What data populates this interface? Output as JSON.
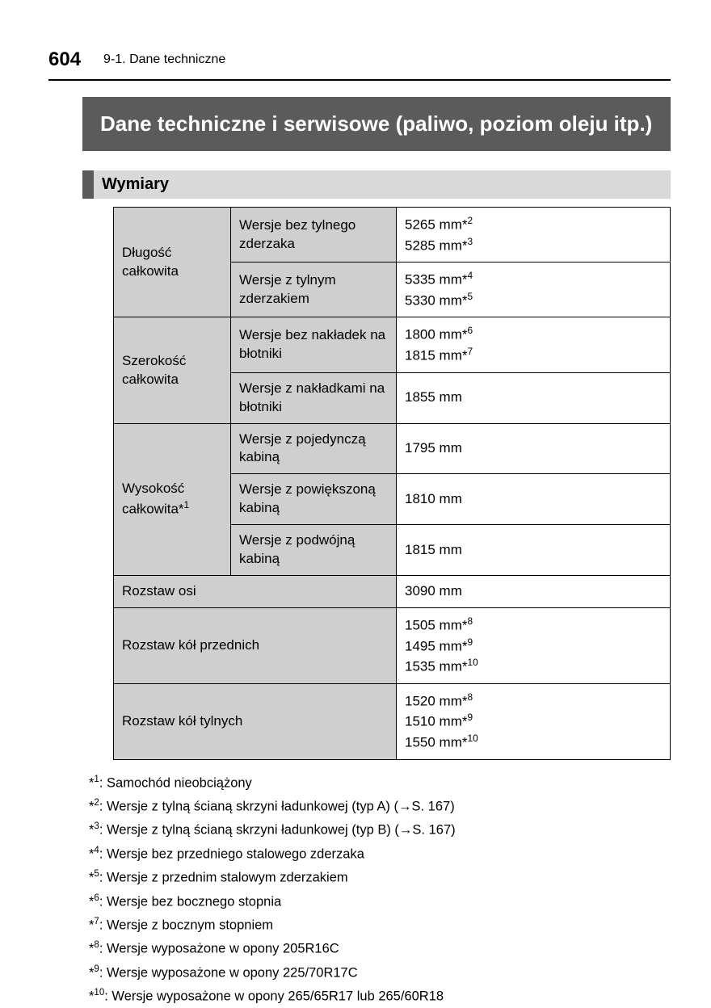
{
  "header": {
    "page_number": "604",
    "section_path": "9-1. Dane techniczne"
  },
  "title": "Dane techniczne i serwisowe (paliwo, poziom oleju itp.)",
  "subheader": "Wymiary",
  "table": {
    "r1": {
      "label": "Długość całkowita",
      "sub": "Wersje bez tylnego zderzaka",
      "val_a": "5265 mm*",
      "sup_a": "2",
      "val_b": "5285 mm*",
      "sup_b": "3"
    },
    "r2": {
      "sub": "Wersje z tylnym zderzakiem",
      "val_a": "5335 mm*",
      "sup_a": "4",
      "val_b": "5330 mm*",
      "sup_b": "5"
    },
    "r3": {
      "label": "Szerokość całkowita",
      "sub": "Wersje bez nakładek na błotniki",
      "val_a": "1800 mm*",
      "sup_a": "6",
      "val_b": "1815 mm*",
      "sup_b": "7"
    },
    "r4": {
      "sub": "Wersje z nakładkami na błotniki",
      "val": "1855 mm"
    },
    "r5": {
      "label_a": "Wysokość całkowita*",
      "label_sup": "1",
      "sub": "Wersje z pojedynczą kabiną",
      "val": "1795 mm"
    },
    "r6": {
      "sub": "Wersje z powiększoną kabiną",
      "val": "1810 mm"
    },
    "r7": {
      "sub": "Wersje z podwójną kabiną",
      "val": "1815 mm"
    },
    "r8": {
      "label": "Rozstaw osi",
      "val": "3090 mm"
    },
    "r9": {
      "label": "Rozstaw kół przednich",
      "val_a": "1505 mm*",
      "sup_a": "8",
      "val_b": "1495 mm*",
      "sup_b": "9",
      "val_c": "1535 mm*",
      "sup_c": "10"
    },
    "r10": {
      "label": "Rozstaw kół tylnych",
      "val_a": "1520 mm*",
      "sup_a": "8",
      "val_b": "1510 mm*",
      "sup_b": "9",
      "val_c": "1550 mm*",
      "sup_c": "10"
    }
  },
  "footnotes": {
    "f1": {
      "pre": "*",
      "sup": "1",
      "txt": ": Samochód nieobciążony"
    },
    "f2": {
      "pre": "*",
      "sup": "2",
      "txt": ": Wersje z tylną ścianą skrzyni ładunkowej (typ A) (→S. 167)"
    },
    "f3": {
      "pre": "*",
      "sup": "3",
      "txt": ": Wersje z tylną ścianą skrzyni ładunkowej (typ B) (→S. 167)"
    },
    "f4": {
      "pre": "*",
      "sup": "4",
      "txt": ": Wersje bez przedniego stalowego zderzaka"
    },
    "f5": {
      "pre": "*",
      "sup": "5",
      "txt": ": Wersje z przednim stalowym zderzakiem"
    },
    "f6": {
      "pre": "*",
      "sup": "6",
      "txt": ": Wersje bez bocznego stopnia"
    },
    "f7": {
      "pre": "*",
      "sup": "7",
      "txt": ": Wersje z bocznym stopniem"
    },
    "f8": {
      "pre": "*",
      "sup": "8",
      "txt": ": Wersje wyposażone w opony 205R16C"
    },
    "f9": {
      "pre": "*",
      "sup": "9",
      "txt": ": Wersje wyposażone w opony 225/70R17C"
    },
    "f10": {
      "pre": "*",
      "sup": "10",
      "txt": ": Wersje wyposażone w opony 265/65R17 lub 265/60R18"
    }
  }
}
